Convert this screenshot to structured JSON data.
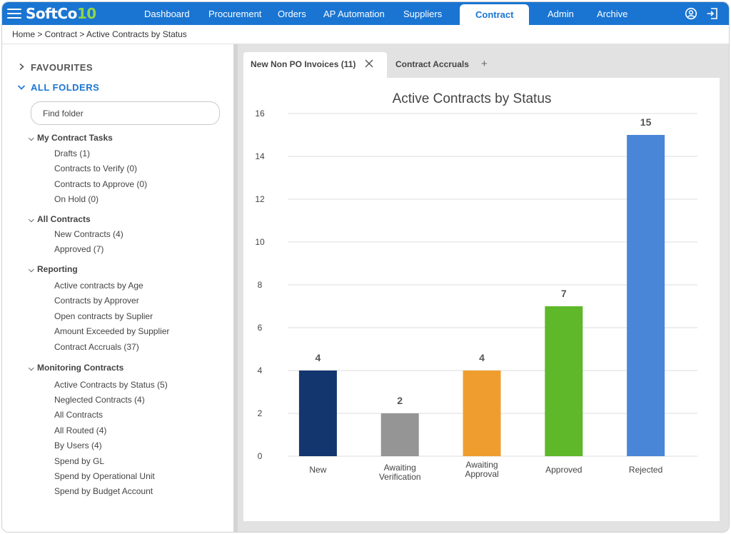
{
  "app": {
    "logo_text": "SoftCo",
    "logo_version": "10",
    "brand_color": "#1a75d2"
  },
  "nav": {
    "items": [
      "Dashboard",
      "Procurement",
      "Orders",
      "AP Automation",
      "Suppliers",
      "Contract",
      "Admin",
      "Archive"
    ],
    "active": "Contract",
    "icons": [
      "user-circle-icon",
      "logout-icon"
    ]
  },
  "breadcrumb": "Home  >  Contract > Active Contracts by Status",
  "sidebar": {
    "favourites_label": "FAVOURITES",
    "all_folders_label": "ALL FOLDERS",
    "find_placeholder": "Find folder",
    "groups": [
      {
        "title": "My Contract Tasks",
        "items": [
          "Drafts (1)",
          "Contracts to Verify (0)",
          "Contracts to Approve (0)",
          "On Hold (0)"
        ]
      },
      {
        "title": "All Contracts",
        "items": [
          "New Contracts (4)",
          "Approved (7)"
        ]
      },
      {
        "title": "Reporting",
        "items": [
          "Active contracts by Age",
          "Contracts by Approver",
          "Open contracts by Suplier",
          "Amount Exceeded by Supplier",
          "Contract Accruals (37)"
        ]
      },
      {
        "title": "Monitoring Contracts",
        "items": [
          "Active Contracts by Status (5)",
          "Neglected Contracts (4)",
          "All Contracts",
          "All Routed (4)",
          "By Users (4)",
          "Spend by GL",
          "Spend by Operational Unit",
          "Spend by Budget Account"
        ]
      }
    ]
  },
  "tabs": {
    "active_label": "New Non PO Invoices (11)",
    "inactive_label": "Contract Accruals",
    "add_symbol": "+"
  },
  "chart_data": {
    "type": "bar",
    "title": "Active Contracts by Status",
    "categories": [
      [
        "New"
      ],
      [
        "Awaiting",
        "Verification"
      ],
      [
        "Awaiting",
        "Approval"
      ],
      [
        "Approved"
      ],
      [
        "Rejected"
      ]
    ],
    "values": [
      4,
      2,
      4,
      7,
      15
    ],
    "colors": [
      "#14366f",
      "#959595",
      "#f09d2f",
      "#5eb82a",
      "#4a86d8"
    ],
    "ylim": [
      0,
      16
    ],
    "yticks": [
      0,
      2,
      4,
      6,
      8,
      10,
      12,
      14,
      16
    ],
    "grid": true,
    "xlabel": "",
    "ylabel": ""
  }
}
